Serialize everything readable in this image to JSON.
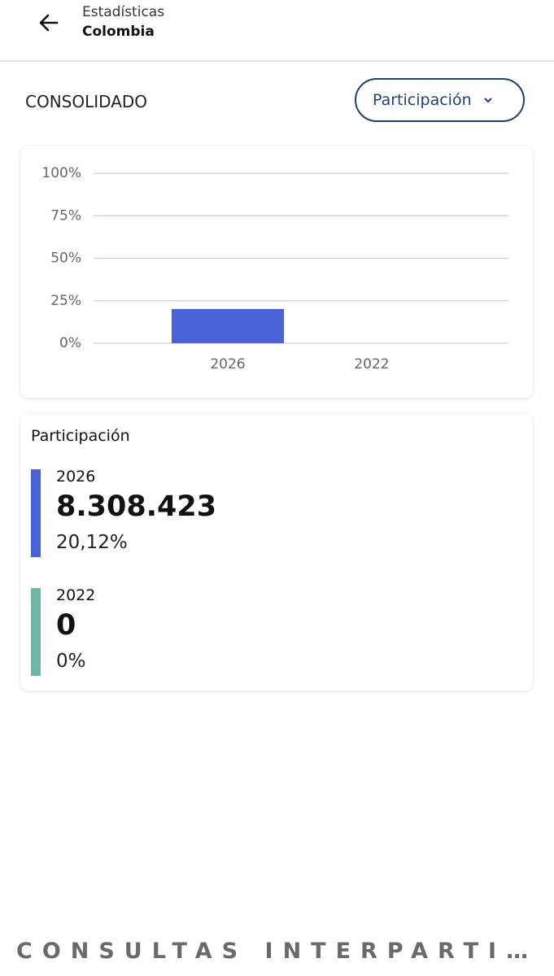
{
  "header": {
    "subtitle": "Estadísticas",
    "title": "Colombia"
  },
  "section_label": "CONSOLIDADO",
  "filter": "Participación",
  "chart_data": {
    "type": "bar",
    "categories": [
      "2026",
      "2022"
    ],
    "values": [
      20.12,
      0
    ],
    "color": "#4a62d8",
    "ylim": [
      0,
      100
    ],
    "yticks": [
      {
        "value": 0,
        "label": "0%"
      },
      {
        "value": 25,
        "label": "25%"
      },
      {
        "value": 50,
        "label": "50%"
      },
      {
        "value": 75,
        "label": "75%"
      },
      {
        "value": 100,
        "label": "100%"
      }
    ],
    "grid": true
  },
  "participation": {
    "title": "Participación",
    "items": [
      {
        "year": "2026",
        "votes": "8.308.423",
        "share": "20,12%",
        "color": "#4a62d8"
      },
      {
        "year": "2022",
        "votes": "0",
        "share": "0%",
        "color": "#6cb8a4"
      }
    ]
  },
  "footer": "CONSULTAS INTERPARTI…"
}
